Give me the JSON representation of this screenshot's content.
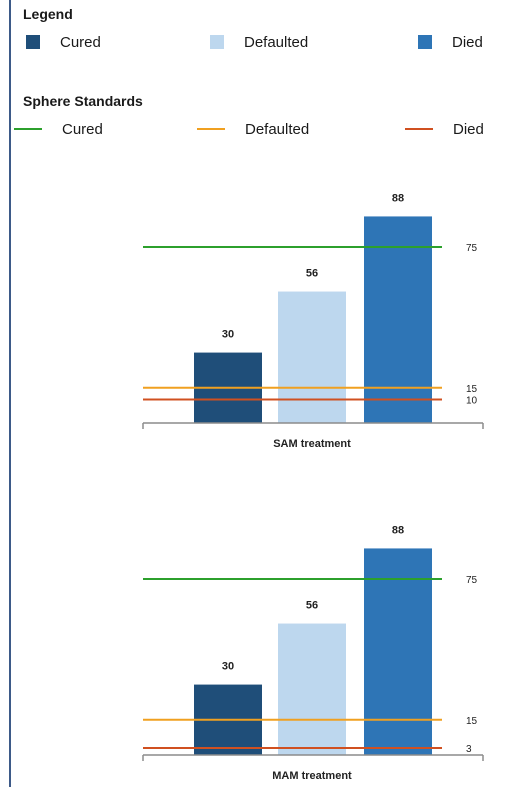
{
  "legend": {
    "title": "Legend",
    "items": [
      {
        "label": "Cured",
        "color": "#1f4e79",
        "icon": "square-swatch"
      },
      {
        "label": "Defaulted",
        "color": "#bdd7ee",
        "icon": "square-swatch"
      },
      {
        "label": "Died",
        "color": "#2e75b6",
        "icon": "square-swatch"
      }
    ]
  },
  "standards_legend": {
    "title": "Sphere Standards",
    "items": [
      {
        "label": "Cured",
        "color": "#2ca02c",
        "icon": "line-swatch"
      },
      {
        "label": "Defaulted",
        "color": "#f0a020",
        "icon": "line-swatch"
      },
      {
        "label": "Died",
        "color": "#d05020",
        "icon": "line-swatch"
      }
    ]
  },
  "chart_data": [
    {
      "type": "bar",
      "xlabel": "SAM treatment",
      "categories": [
        "Cured",
        "Defaulted",
        "Died"
      ],
      "values": [
        30,
        56,
        88
      ],
      "colors": [
        "#1f4e79",
        "#bdd7ee",
        "#2e75b6"
      ],
      "reference_lines": [
        {
          "name": "Cured",
          "value": 75,
          "label": "75",
          "color": "#2ca02c"
        },
        {
          "name": "Defaulted",
          "value": 15,
          "label": "15",
          "color": "#f0a020"
        },
        {
          "name": "Died",
          "value": 10,
          "label": "10",
          "color": "#d05020"
        }
      ],
      "ylim": [
        0,
        95
      ]
    },
    {
      "type": "bar",
      "xlabel": "MAM treatment",
      "categories": [
        "Cured",
        "Defaulted",
        "Died"
      ],
      "values": [
        30,
        56,
        88
      ],
      "colors": [
        "#1f4e79",
        "#bdd7ee",
        "#2e75b6"
      ],
      "reference_lines": [
        {
          "name": "Cured",
          "value": 75,
          "label": "75",
          "color": "#2ca02c"
        },
        {
          "name": "Defaulted",
          "value": 15,
          "label": "15",
          "color": "#f0a020"
        },
        {
          "name": "Died",
          "value": 3,
          "label": "3",
          "color": "#d05020"
        }
      ],
      "ylim": [
        0,
        95
      ]
    }
  ]
}
